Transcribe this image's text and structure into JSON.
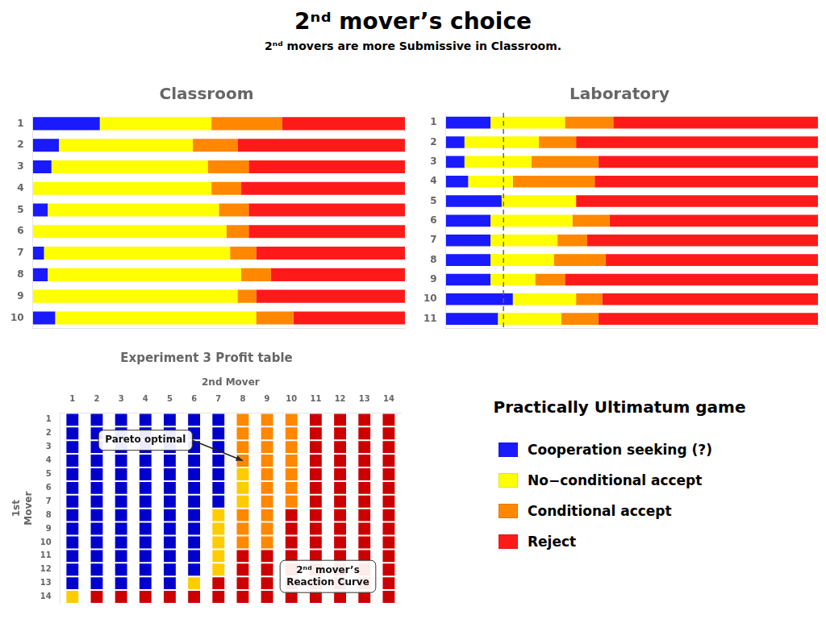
{
  "title": "2ⁿᵈ mover’s choice",
  "subtitle": "2ⁿᵈ movers are more Submissive in Classroom.",
  "legend": "lower right",
  "annotations": [
    "Practically Ultimatum game"
  ],
  "chart_data": [
    {
      "type": "bar",
      "title": "Classroom",
      "orientation": "horizontal",
      "stacked": true,
      "grid": false,
      "tick_labels": "y",
      "xlim": [
        0,
        1
      ],
      "categories": [
        "1",
        "2",
        "3",
        "4",
        "5",
        "6",
        "7",
        "8",
        "9",
        "10"
      ],
      "series": [
        {
          "name": "Cooperation seeking (?)",
          "color": "#1a1aff",
          "values": [
            0.18,
            0.07,
            0.05,
            0.0,
            0.04,
            0.0,
            0.03,
            0.04,
            0.0,
            0.06
          ]
        },
        {
          "name": "No−conditional accept",
          "color": "#ffff00",
          "values": [
            0.3,
            0.36,
            0.42,
            0.48,
            0.46,
            0.52,
            0.5,
            0.52,
            0.55,
            0.54
          ]
        },
        {
          "name": "Conditional accept",
          "color": "#ff8800",
          "values": [
            0.19,
            0.12,
            0.11,
            0.08,
            0.08,
            0.06,
            0.07,
            0.08,
            0.05,
            0.1
          ]
        },
        {
          "name": "Reject",
          "color": "#ff1a1a",
          "values": [
            0.33,
            0.45,
            0.42,
            0.44,
            0.42,
            0.42,
            0.4,
            0.36,
            0.4,
            0.3
          ]
        }
      ]
    },
    {
      "type": "bar",
      "title": "Laboratory",
      "orientation": "horizontal",
      "stacked": true,
      "grid": false,
      "tick_labels": "y",
      "xlim": [
        0,
        1
      ],
      "vline": 0.155,
      "categories": [
        "1",
        "2",
        "3",
        "4",
        "5",
        "6",
        "7",
        "8",
        "9",
        "10",
        "11"
      ],
      "series": [
        {
          "name": "Cooperation seeking (?)",
          "color": "#1a1aff",
          "values": [
            0.12,
            0.05,
            0.05,
            0.06,
            0.15,
            0.12,
            0.12,
            0.12,
            0.12,
            0.18,
            0.14
          ]
        },
        {
          "name": "No−conditional accept",
          "color": "#ffff00",
          "values": [
            0.2,
            0.2,
            0.18,
            0.12,
            0.2,
            0.22,
            0.18,
            0.17,
            0.12,
            0.17,
            0.17
          ]
        },
        {
          "name": "Conditional accept",
          "color": "#ff8800",
          "values": [
            0.13,
            0.1,
            0.18,
            0.22,
            0.0,
            0.1,
            0.08,
            0.14,
            0.08,
            0.07,
            0.1
          ]
        },
        {
          "name": "Reject",
          "color": "#ff1a1a",
          "values": [
            0.55,
            0.65,
            0.59,
            0.6,
            0.65,
            0.56,
            0.62,
            0.57,
            0.68,
            0.58,
            0.59
          ]
        }
      ]
    },
    {
      "type": "grid",
      "title": "Experiment 3 Profit table",
      "x_label": "2nd Mover",
      "y_label": [
        "1st",
        "Mover"
      ],
      "categories": [
        "1",
        "2",
        "3",
        "4",
        "5",
        "6",
        "7",
        "8",
        "9",
        "10",
        "11",
        "12",
        "13",
        "14"
      ],
      "row_categories": [
        "1",
        "2",
        "3",
        "4",
        "5",
        "6",
        "7",
        "8",
        "9",
        "10",
        "11",
        "12",
        "13",
        "14"
      ],
      "annotations": [
        "Pareto optimal",
        "2ⁿᵈ mover’s\nReaction Curve"
      ],
      "colors": [
        [
          "#0000cc",
          "#0000cc",
          "#0000cc",
          "#0000cc",
          "#0000cc",
          "#0000cc",
          "#0000cc",
          "#ff8800",
          "#ff8800",
          "#ff8800",
          "#cc0000",
          "#cc0000",
          "#cc0000",
          "#cc0000"
        ],
        [
          "#0000cc",
          "#0000cc",
          "#0000cc",
          "#0000cc",
          "#0000cc",
          "#0000cc",
          "#0000cc",
          "#ff8800",
          "#ff8800",
          "#ff8800",
          "#cc0000",
          "#cc0000",
          "#cc0000",
          "#cc0000"
        ],
        [
          "#0000cc",
          "#0000cc",
          "#0000cc",
          "#0000cc",
          "#0000cc",
          "#0000cc",
          "#0000cc",
          "#ff8800",
          "#ff8800",
          "#ff8800",
          "#cc0000",
          "#cc0000",
          "#cc0000",
          "#cc0000"
        ],
        [
          "#0000cc",
          "#0000cc",
          "#0000cc",
          "#0000cc",
          "#0000cc",
          "#0000cc",
          "#0000cc",
          "#ff8800",
          "#ff8800",
          "#ff8800",
          "#cc0000",
          "#cc0000",
          "#cc0000",
          "#cc0000"
        ],
        [
          "#0000cc",
          "#0000cc",
          "#0000cc",
          "#0000cc",
          "#0000cc",
          "#0000cc",
          "#0000cc",
          "#ffcc00",
          "#ff8800",
          "#ff8800",
          "#cc0000",
          "#cc0000",
          "#cc0000",
          "#cc0000"
        ],
        [
          "#0000cc",
          "#0000cc",
          "#0000cc",
          "#0000cc",
          "#0000cc",
          "#0000cc",
          "#0000cc",
          "#ffcc00",
          "#ff8800",
          "#ff8800",
          "#cc0000",
          "#cc0000",
          "#cc0000",
          "#cc0000"
        ],
        [
          "#0000cc",
          "#0000cc",
          "#0000cc",
          "#0000cc",
          "#0000cc",
          "#0000cc",
          "#0000cc",
          "#ffcc00",
          "#ff8800",
          "#ff8800",
          "#cc0000",
          "#cc0000",
          "#cc0000",
          "#cc0000"
        ],
        [
          "#0000cc",
          "#0000cc",
          "#0000cc",
          "#0000cc",
          "#0000cc",
          "#0000cc",
          "#ffcc00",
          "#ff8800",
          "#ff8800",
          "#cc0000",
          "#cc0000",
          "#cc0000",
          "#cc0000",
          "#cc0000"
        ],
        [
          "#0000cc",
          "#0000cc",
          "#0000cc",
          "#0000cc",
          "#0000cc",
          "#0000cc",
          "#ffcc00",
          "#ff8800",
          "#ff8800",
          "#cc0000",
          "#cc0000",
          "#cc0000",
          "#cc0000",
          "#cc0000"
        ],
        [
          "#0000cc",
          "#0000cc",
          "#0000cc",
          "#0000cc",
          "#0000cc",
          "#0000cc",
          "#ffcc00",
          "#ff8800",
          "#ff8800",
          "#cc0000",
          "#cc0000",
          "#cc0000",
          "#cc0000",
          "#cc0000"
        ],
        [
          "#0000cc",
          "#0000cc",
          "#0000cc",
          "#0000cc",
          "#0000cc",
          "#0000cc",
          "#ffcc00",
          "#cc0000",
          "#cc0000",
          "#cc0000",
          "#cc0000",
          "#cc0000",
          "#cc0000",
          "#cc0000"
        ],
        [
          "#0000cc",
          "#0000cc",
          "#0000cc",
          "#0000cc",
          "#0000cc",
          "#0000cc",
          "#ffcc00",
          "#cc0000",
          "#cc0000",
          "#cc0000",
          "#cc0000",
          "#cc0000",
          "#cc0000",
          "#cc0000"
        ],
        [
          "#0000cc",
          "#0000cc",
          "#0000cc",
          "#0000cc",
          "#0000cc",
          "#ffcc00",
          "#cc0000",
          "#cc0000",
          "#cc0000",
          "#cc0000",
          "#cc0000",
          "#cc0000",
          "#cc0000",
          "#cc0000"
        ],
        [
          "#ffcc00",
          "#cc0000",
          "#cc0000",
          "#cc0000",
          "#cc0000",
          "#cc0000",
          "#cc0000",
          "#cc0000",
          "#cc0000",
          "#cc0000",
          "#cc0000",
          "#cc0000",
          "#cc0000",
          "#cc0000"
        ]
      ]
    }
  ]
}
